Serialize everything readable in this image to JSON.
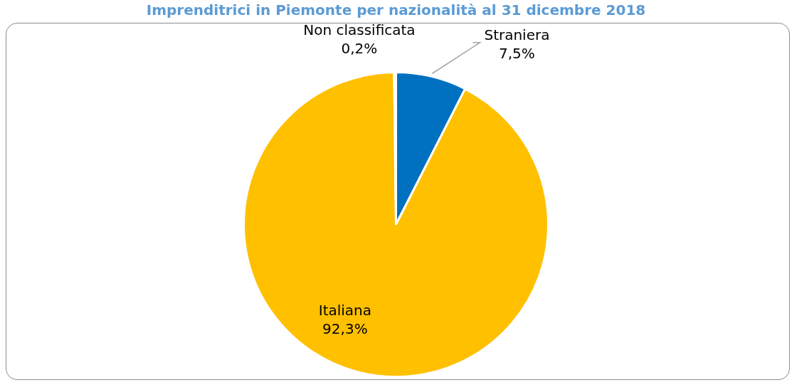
{
  "chart_data": {
    "type": "pie",
    "title": "Imprenditrici in Piemonte per nazionalità al 31 dicembre 2018",
    "categories": [
      "Straniera",
      "Italiana",
      "Non classificata"
    ],
    "values": [
      7.5,
      92.3,
      0.2
    ],
    "colors": [
      "#0070c0",
      "#ffc000",
      "#a5a5a5"
    ],
    "value_labels": [
      "7,5%",
      "92,3%",
      "0,2%"
    ],
    "legend": false
  }
}
